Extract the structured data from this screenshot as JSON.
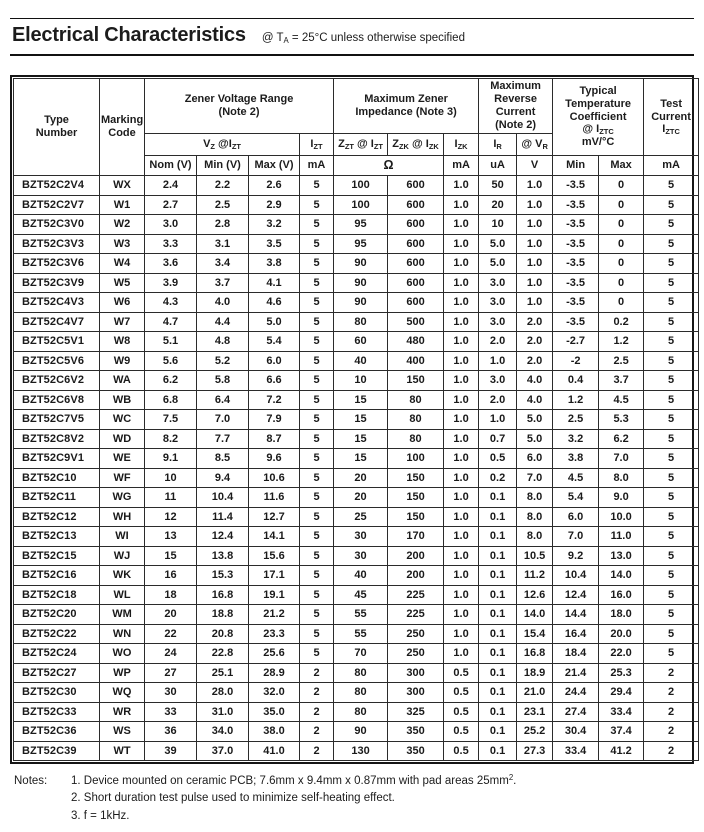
{
  "colors": {
    "ink": "#1c1c1c",
    "border": "#2b2b2b",
    "background": "#ffffff"
  },
  "header": {
    "title": "Electrical Characteristics",
    "condition": [
      [
        "n",
        "@ T"
      ],
      [
        "s",
        "A"
      ],
      [
        "n",
        " = 25°C unless otherwise specified"
      ]
    ]
  },
  "table": {
    "group_headers": {
      "type_number": "Type\nNumber",
      "marking_code": "Marking\nCode",
      "zener_voltage_range": "Zener Voltage Range\n(Note 2)",
      "max_zener_impedance": "Maximum Zener\nImpedance (Note 3)",
      "max_reverse_current": "Maximum\nReverse\nCurrent\n(Note 2)",
      "temp_coefficient": [
        [
          "n",
          "Typical"
        ],
        [
          "b"
        ],
        [
          "n",
          "Temperature"
        ],
        [
          "b"
        ],
        [
          "n",
          "Coefficient"
        ],
        [
          "b"
        ],
        [
          "n",
          "@ I"
        ],
        [
          "s",
          "ZTC"
        ],
        [
          "b"
        ],
        [
          "n",
          "mV/°C"
        ]
      ],
      "test_current": [
        [
          "n",
          "Test"
        ],
        [
          "b"
        ],
        [
          "n",
          "Current"
        ],
        [
          "b"
        ],
        [
          "n",
          "I"
        ],
        [
          "s",
          "ZTC"
        ]
      ]
    },
    "sub_headers": {
      "vz_at_izt": [
        [
          "n",
          "V"
        ],
        [
          "s",
          "Z"
        ],
        [
          "n",
          " @I"
        ],
        [
          "s",
          "ZT"
        ]
      ],
      "izt": [
        [
          "n",
          "I"
        ],
        [
          "s",
          "ZT"
        ]
      ],
      "zzt_at_izt": [
        [
          "n",
          "Z"
        ],
        [
          "s",
          "ZT"
        ],
        [
          "n",
          " @ I"
        ],
        [
          "s",
          "ZT"
        ]
      ],
      "zzk_at_izk": [
        [
          "n",
          "Z"
        ],
        [
          "s",
          "ZK"
        ],
        [
          "n",
          " @ I"
        ],
        [
          "s",
          "ZK"
        ]
      ],
      "izk": [
        [
          "n",
          "I"
        ],
        [
          "s",
          "ZK"
        ]
      ],
      "ir": [
        [
          "n",
          "I"
        ],
        [
          "s",
          "R"
        ]
      ],
      "at_vr": [
        [
          "n",
          "@ V"
        ],
        [
          "s",
          "R"
        ]
      ]
    },
    "unit_row": {
      "nom": "Nom (V)",
      "min": "Min (V)",
      "max": "Max (V)",
      "izt_unit": "mA",
      "impedance_unit": "Ω",
      "izk_unit": "mA",
      "ir_unit": "uA",
      "vr_unit": "V",
      "tc_min": "Min",
      "tc_max": "Max",
      "test_unit": "mA"
    },
    "rows": [
      [
        "BZT52C2V4",
        "WX",
        "2.4",
        "2.2",
        "2.6",
        "5",
        "100",
        "600",
        "1.0",
        "50",
        "1.0",
        "-3.5",
        "0",
        "5"
      ],
      [
        "BZT52C2V7",
        "W1",
        "2.7",
        "2.5",
        "2.9",
        "5",
        "100",
        "600",
        "1.0",
        "20",
        "1.0",
        "-3.5",
        "0",
        "5"
      ],
      [
        "BZT52C3V0",
        "W2",
        "3.0",
        "2.8",
        "3.2",
        "5",
        "95",
        "600",
        "1.0",
        "10",
        "1.0",
        "-3.5",
        "0",
        "5"
      ],
      [
        "BZT52C3V3",
        "W3",
        "3.3",
        "3.1",
        "3.5",
        "5",
        "95",
        "600",
        "1.0",
        "5.0",
        "1.0",
        "-3.5",
        "0",
        "5"
      ],
      [
        "BZT52C3V6",
        "W4",
        "3.6",
        "3.4",
        "3.8",
        "5",
        "90",
        "600",
        "1.0",
        "5.0",
        "1.0",
        "-3.5",
        "0",
        "5"
      ],
      [
        "BZT52C3V9",
        "W5",
        "3.9",
        "3.7",
        "4.1",
        "5",
        "90",
        "600",
        "1.0",
        "3.0",
        "1.0",
        "-3.5",
        "0",
        "5"
      ],
      [
        "BZT52C4V3",
        "W6",
        "4.3",
        "4.0",
        "4.6",
        "5",
        "90",
        "600",
        "1.0",
        "3.0",
        "1.0",
        "-3.5",
        "0",
        "5"
      ],
      [
        "BZT52C4V7",
        "W7",
        "4.7",
        "4.4",
        "5.0",
        "5",
        "80",
        "500",
        "1.0",
        "3.0",
        "2.0",
        "-3.5",
        "0.2",
        "5"
      ],
      [
        "BZT52C5V1",
        "W8",
        "5.1",
        "4.8",
        "5.4",
        "5",
        "60",
        "480",
        "1.0",
        "2.0",
        "2.0",
        "-2.7",
        "1.2",
        "5"
      ],
      [
        "BZT52C5V6",
        "W9",
        "5.6",
        "5.2",
        "6.0",
        "5",
        "40",
        "400",
        "1.0",
        "1.0",
        "2.0",
        "-2",
        "2.5",
        "5"
      ],
      [
        "BZT52C6V2",
        "WA",
        "6.2",
        "5.8",
        "6.6",
        "5",
        "10",
        "150",
        "1.0",
        "3.0",
        "4.0",
        "0.4",
        "3.7",
        "5"
      ],
      [
        "BZT52C6V8",
        "WB",
        "6.8",
        "6.4",
        "7.2",
        "5",
        "15",
        "80",
        "1.0",
        "2.0",
        "4.0",
        "1.2",
        "4.5",
        "5"
      ],
      [
        "BZT52C7V5",
        "WC",
        "7.5",
        "7.0",
        "7.9",
        "5",
        "15",
        "80",
        "1.0",
        "1.0",
        "5.0",
        "2.5",
        "5.3",
        "5"
      ],
      [
        "BZT52C8V2",
        "WD",
        "8.2",
        "7.7",
        "8.7",
        "5",
        "15",
        "80",
        "1.0",
        "0.7",
        "5.0",
        "3.2",
        "6.2",
        "5"
      ],
      [
        "BZT52C9V1",
        "WE",
        "9.1",
        "8.5",
        "9.6",
        "5",
        "15",
        "100",
        "1.0",
        "0.5",
        "6.0",
        "3.8",
        "7.0",
        "5"
      ],
      [
        "BZT52C10",
        "WF",
        "10",
        "9.4",
        "10.6",
        "5",
        "20",
        "150",
        "1.0",
        "0.2",
        "7.0",
        "4.5",
        "8.0",
        "5"
      ],
      [
        "BZT52C11",
        "WG",
        "11",
        "10.4",
        "11.6",
        "5",
        "20",
        "150",
        "1.0",
        "0.1",
        "8.0",
        "5.4",
        "9.0",
        "5"
      ],
      [
        "BZT52C12",
        "WH",
        "12",
        "11.4",
        "12.7",
        "5",
        "25",
        "150",
        "1.0",
        "0.1",
        "8.0",
        "6.0",
        "10.0",
        "5"
      ],
      [
        "BZT52C13",
        "WI",
        "13",
        "12.4",
        "14.1",
        "5",
        "30",
        "170",
        "1.0",
        "0.1",
        "8.0",
        "7.0",
        "11.0",
        "5"
      ],
      [
        "BZT52C15",
        "WJ",
        "15",
        "13.8",
        "15.6",
        "5",
        "30",
        "200",
        "1.0",
        "0.1",
        "10.5",
        "9.2",
        "13.0",
        "5"
      ],
      [
        "BZT52C16",
        "WK",
        "16",
        "15.3",
        "17.1",
        "5",
        "40",
        "200",
        "1.0",
        "0.1",
        "11.2",
        "10.4",
        "14.0",
        "5"
      ],
      [
        "BZT52C18",
        "WL",
        "18",
        "16.8",
        "19.1",
        "5",
        "45",
        "225",
        "1.0",
        "0.1",
        "12.6",
        "12.4",
        "16.0",
        "5"
      ],
      [
        "BZT52C20",
        "WM",
        "20",
        "18.8",
        "21.2",
        "5",
        "55",
        "225",
        "1.0",
        "0.1",
        "14.0",
        "14.4",
        "18.0",
        "5"
      ],
      [
        "BZT52C22",
        "WN",
        "22",
        "20.8",
        "23.3",
        "5",
        "55",
        "250",
        "1.0",
        "0.1",
        "15.4",
        "16.4",
        "20.0",
        "5"
      ],
      [
        "BZT52C24",
        "WO",
        "24",
        "22.8",
        "25.6",
        "5",
        "70",
        "250",
        "1.0",
        "0.1",
        "16.8",
        "18.4",
        "22.0",
        "5"
      ],
      [
        "BZT52C27",
        "WP",
        "27",
        "25.1",
        "28.9",
        "2",
        "80",
        "300",
        "0.5",
        "0.1",
        "18.9",
        "21.4",
        "25.3",
        "2"
      ],
      [
        "BZT52C30",
        "WQ",
        "30",
        "28.0",
        "32.0",
        "2",
        "80",
        "300",
        "0.5",
        "0.1",
        "21.0",
        "24.4",
        "29.4",
        "2"
      ],
      [
        "BZT52C33",
        "WR",
        "33",
        "31.0",
        "35.0",
        "2",
        "80",
        "325",
        "0.5",
        "0.1",
        "23.1",
        "27.4",
        "33.4",
        "2"
      ],
      [
        "BZT52C36",
        "WS",
        "36",
        "34.0",
        "38.0",
        "2",
        "90",
        "350",
        "0.5",
        "0.1",
        "25.2",
        "30.4",
        "37.4",
        "2"
      ],
      [
        "BZT52C39",
        "WT",
        "39",
        "37.0",
        "41.0",
        "2",
        "130",
        "350",
        "0.5",
        "0.1",
        "27.3",
        "33.4",
        "41.2",
        "2"
      ]
    ]
  },
  "notes": {
    "label": "Notes:",
    "items": [
      [
        [
          "n",
          "1. Device mounted on ceramic PCB; 7.6mm x 9.4mm x 0.87mm with pad areas 25mm"
        ],
        [
          "p",
          "2"
        ],
        [
          "n",
          "."
        ]
      ],
      [
        [
          "n",
          "2. Short duration test pulse used to minimize self-heating effect."
        ]
      ],
      [
        [
          "n",
          "3. f = 1kHz."
        ]
      ]
    ]
  }
}
